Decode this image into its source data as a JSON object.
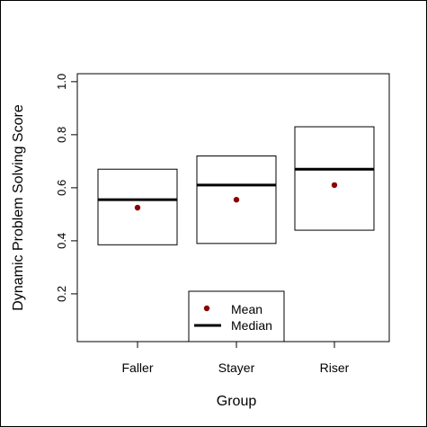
{
  "chart_data": {
    "type": "box",
    "title": "",
    "xlabel": "Group",
    "ylabel": "Dynamic Problem Solving Score",
    "categories": [
      "Faller",
      "Stayer",
      "Riser"
    ],
    "boxes": [
      {
        "category": "Faller",
        "lower": 0.385,
        "upper": 0.67,
        "median": 0.555,
        "mean": 0.525
      },
      {
        "category": "Stayer",
        "lower": 0.39,
        "upper": 0.72,
        "median": 0.61,
        "mean": 0.555
      },
      {
        "category": "Riser",
        "lower": 0.44,
        "upper": 0.83,
        "median": 0.67,
        "mean": 0.61
      }
    ],
    "ylim": [
      0.02,
      1.03
    ],
    "yticks": [
      0.2,
      0.4,
      0.6,
      0.8,
      1.0
    ],
    "ytick_labels": [
      "0.2",
      "0.4",
      "0.6",
      "0.8",
      "1.0"
    ],
    "grid": false,
    "legend": {
      "position": "bottom-center",
      "entries": [
        {
          "label": "Mean",
          "symbol": "point",
          "color": "#8b0000"
        },
        {
          "label": "Median",
          "symbol": "line",
          "color": "#000000"
        }
      ]
    },
    "mean_color": "#8b0000",
    "median_color": "#000000"
  }
}
